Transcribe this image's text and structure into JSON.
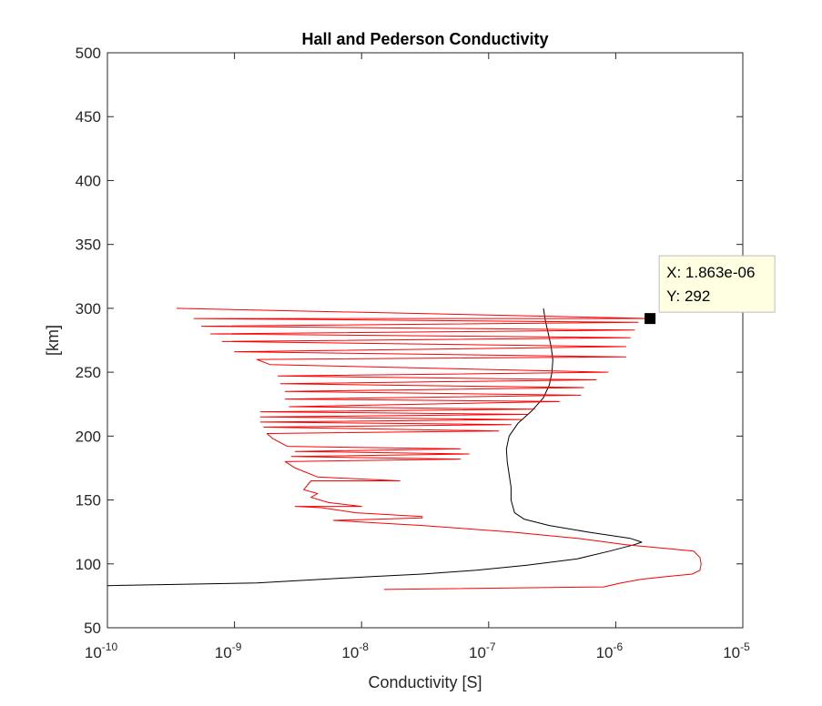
{
  "chart_data": {
    "type": "line",
    "title": "Hall and Pederson Conductivity",
    "xlabel": "Conductivity [S]",
    "ylabel": "[km]",
    "xscale": "log",
    "xlim": [
      1e-10,
      1e-05
    ],
    "ylim": [
      50,
      500
    ],
    "x_ticks": [
      {
        "base": "10",
        "exp": "-10",
        "value": 1e-10
      },
      {
        "base": "10",
        "exp": "-9",
        "value": 1e-09
      },
      {
        "base": "10",
        "exp": "-8",
        "value": 1e-08
      },
      {
        "base": "10",
        "exp": "-7",
        "value": 1e-07
      },
      {
        "base": "10",
        "exp": "-6",
        "value": 1e-06
      },
      {
        "base": "10",
        "exp": "-5",
        "value": 1e-05
      }
    ],
    "y_ticks": [
      {
        "label": "50",
        "value": 50
      },
      {
        "label": "100",
        "value": 100
      },
      {
        "label": "150",
        "value": 150
      },
      {
        "label": "200",
        "value": 200
      },
      {
        "label": "250",
        "value": 250
      },
      {
        "label": "300",
        "value": 300
      },
      {
        "label": "350",
        "value": 350
      },
      {
        "label": "400",
        "value": 400
      },
      {
        "label": "450",
        "value": 450
      },
      {
        "label": "500",
        "value": 500
      }
    ],
    "grid": false,
    "series": [
      {
        "color": "#000000",
        "points": [
          [
            1e-10,
            83
          ],
          [
            1.5e-09,
            85
          ],
          [
            5e-09,
            88
          ],
          [
            1.2e-08,
            90
          ],
          [
            3e-08,
            92
          ],
          [
            8e-08,
            95
          ],
          [
            2e-07,
            99
          ],
          [
            5e-07,
            104
          ],
          [
            9e-07,
            110
          ],
          [
            1.4e-06,
            115
          ],
          [
            1.6e-06,
            117
          ],
          [
            1.3e-06,
            120
          ],
          [
            6e-07,
            125
          ],
          [
            3e-07,
            130
          ],
          [
            1.9e-07,
            135
          ],
          [
            1.6e-07,
            140
          ],
          [
            1.5e-07,
            150
          ],
          [
            1.5e-07,
            160
          ],
          [
            1.45e-07,
            170
          ],
          [
            1.4e-07,
            180
          ],
          [
            1.38e-07,
            190
          ],
          [
            1.45e-07,
            200
          ],
          [
            1.7e-07,
            210
          ],
          [
            2.2e-07,
            220
          ],
          [
            2.7e-07,
            230
          ],
          [
            3e-07,
            240
          ],
          [
            3.15e-07,
            250
          ],
          [
            3.2e-07,
            260
          ],
          [
            3.1e-07,
            270
          ],
          [
            2.95e-07,
            280
          ],
          [
            2.8e-07,
            290
          ],
          [
            2.7e-07,
            300
          ]
        ]
      },
      {
        "color": "#ff0000",
        "points": [
          [
            1.5e-08,
            80
          ],
          [
            8e-07,
            82
          ],
          [
            1.1e-06,
            85
          ],
          [
            1.6e-06,
            88
          ],
          [
            2.5e-06,
            90
          ],
          [
            4e-06,
            92
          ],
          [
            4.6e-06,
            95
          ],
          [
            4.7e-06,
            100
          ],
          [
            4.6e-06,
            105
          ],
          [
            4.1e-06,
            110
          ],
          [
            2.5e-06,
            112
          ],
          [
            1.2e-06,
            115
          ],
          [
            5e-07,
            120
          ],
          [
            1.5e-07,
            125
          ],
          [
            3e-08,
            130
          ],
          [
            6e-09,
            134
          ],
          [
            3e-08,
            136
          ],
          [
            3e-08,
            137
          ],
          [
            9e-09,
            140
          ],
          [
            4.8e-09,
            144
          ],
          [
            3e-09,
            145
          ],
          [
            1e-08,
            145
          ],
          [
            5.5e-09,
            148
          ],
          [
            4e-09,
            152
          ],
          [
            4.5e-09,
            155
          ],
          [
            3.5e-09,
            158
          ],
          [
            4e-09,
            165
          ],
          [
            2e-08,
            165
          ],
          [
            4.5e-09,
            168
          ],
          [
            3e-09,
            175
          ],
          [
            2.5e-09,
            180
          ],
          [
            6e-08,
            182
          ],
          [
            2.8e-09,
            184
          ],
          [
            7e-08,
            186
          ],
          [
            3e-09,
            188
          ],
          [
            6e-08,
            190
          ],
          [
            2.6e-09,
            192
          ],
          [
            2e-09,
            198
          ],
          [
            1.8e-09,
            202
          ],
          [
            1.2e-07,
            204
          ],
          [
            1.7e-09,
            207
          ],
          [
            1.5e-07,
            209
          ],
          [
            1.6e-09,
            211
          ],
          [
            1.8e-07,
            213
          ],
          [
            1.6e-09,
            215
          ],
          [
            2e-07,
            217
          ],
          [
            1.6e-09,
            219
          ],
          [
            2.3e-07,
            221
          ],
          [
            2.7e-09,
            223
          ],
          [
            3.6e-07,
            227
          ],
          [
            2.5e-09,
            229
          ],
          [
            5.3e-07,
            232
          ],
          [
            2.5e-09,
            235
          ],
          [
            5.6e-07,
            238
          ],
          [
            2.3e-09,
            241
          ],
          [
            7e-07,
            244
          ],
          [
            2.2e-09,
            247
          ],
          [
            8.7e-07,
            250
          ],
          [
            1.9e-09,
            256
          ],
          [
            1.5e-09,
            260
          ],
          [
            1.2e-06,
            262
          ],
          [
            1e-09,
            266
          ],
          [
            1.2e-06,
            270
          ],
          [
            8e-10,
            274
          ],
          [
            1.3e-06,
            277
          ],
          [
            6.5e-10,
            280
          ],
          [
            1.4e-06,
            283
          ],
          [
            5.5e-10,
            286
          ],
          [
            1.5e-06,
            289
          ],
          [
            4.8e-10,
            292
          ],
          [
            1.863e-06,
            292
          ],
          [
            3.5e-10,
            300
          ]
        ]
      }
    ],
    "datatip": {
      "x": 1.863e-06,
      "y": 292,
      "x_text": "X: 1.863e-06",
      "y_text": "Y: 292"
    }
  }
}
